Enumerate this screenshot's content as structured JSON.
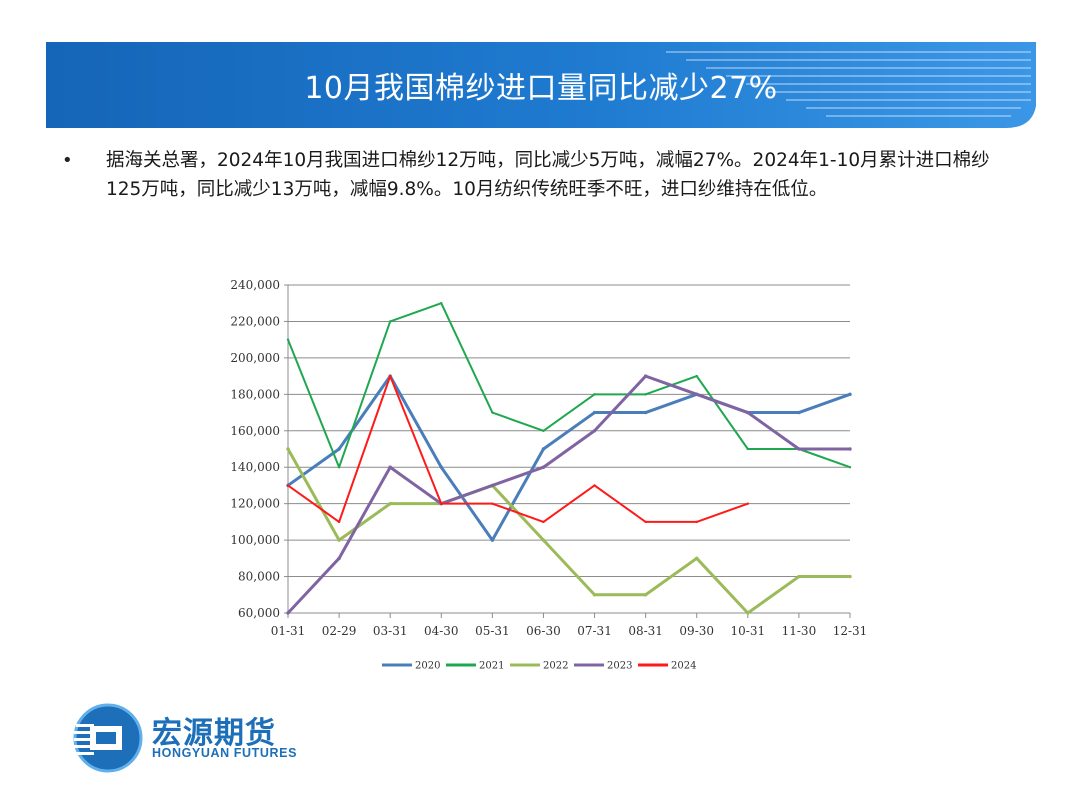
{
  "header": {
    "title": "10月我国棉纱进口量同比减少27%"
  },
  "bullet": {
    "text": "据海关总署，2024年10月我国进口棉纱12万吨，同比减少5万吨，减幅27%。2024年1-10月累计进口棉纱125万吨，同比减少13万吨，减幅9.8%。10月纺织传统旺季不旺，进口纱维持在低位。"
  },
  "colors": {
    "banner_dark": "#1565b8",
    "banner_light": "#2f8ee0",
    "logo_blue": "#1c6fb8"
  },
  "chart_data": {
    "type": "line",
    "title": "",
    "xlabel": "",
    "ylabel": "",
    "categories": [
      "01-31",
      "02-29",
      "03-31",
      "04-30",
      "05-31",
      "06-30",
      "07-31",
      "08-31",
      "09-30",
      "10-31",
      "11-30",
      "12-31"
    ],
    "ylim": [
      60000,
      240000
    ],
    "yticks": [
      60000,
      80000,
      100000,
      120000,
      140000,
      160000,
      180000,
      200000,
      220000,
      240000
    ],
    "ytick_labels": [
      "60,000",
      "80,000",
      "100,000",
      "120,000",
      "140,000",
      "160,000",
      "180,000",
      "200,000",
      "220,000",
      "240,000"
    ],
    "grid": true,
    "legend_position": "bottom",
    "series": [
      {
        "name": "2020",
        "color": "#4a7ebb",
        "values": [
          130000,
          150000,
          190000,
          140000,
          100000,
          150000,
          170000,
          170000,
          180000,
          170000,
          170000,
          180000
        ]
      },
      {
        "name": "2021",
        "color": "#1fa84f",
        "values": [
          210000,
          140000,
          220000,
          230000,
          170000,
          160000,
          180000,
          180000,
          190000,
          150000,
          150000,
          140000
        ]
      },
      {
        "name": "2022",
        "color": "#9bbb59",
        "values": [
          150000,
          100000,
          120000,
          120000,
          130000,
          100000,
          70000,
          70000,
          90000,
          60000,
          80000,
          80000
        ]
      },
      {
        "name": "2023",
        "color": "#8064a2",
        "values": [
          60000,
          90000,
          140000,
          120000,
          130000,
          140000,
          160000,
          190000,
          180000,
          170000,
          150000,
          150000
        ]
      },
      {
        "name": "2024",
        "color": "#ff1a1a",
        "values": [
          130000,
          110000,
          190000,
          120000,
          120000,
          110000,
          130000,
          110000,
          110000,
          120000,
          null,
          null
        ]
      }
    ]
  },
  "logo": {
    "cn": "宏源期货",
    "en": "HONGYUAN FUTURES"
  }
}
